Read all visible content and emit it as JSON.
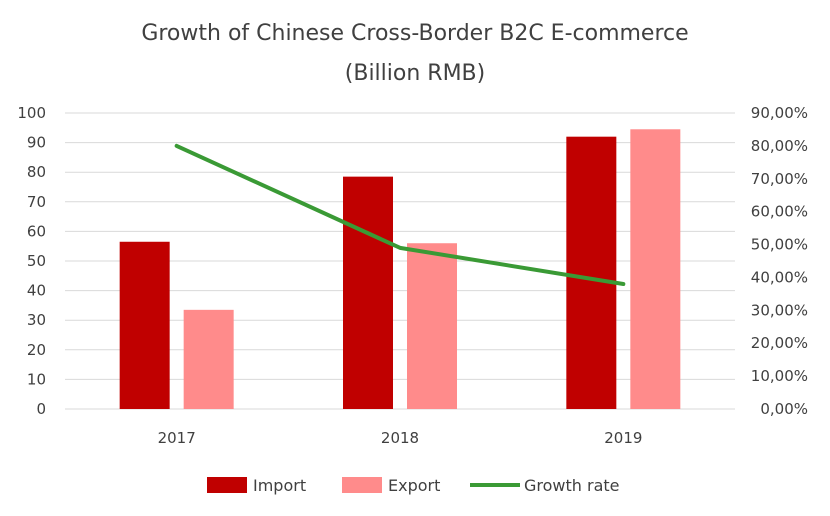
{
  "chart_data": {
    "type": "bar",
    "title": "Growth of Chinese Cross-Border B2C E-commerce",
    "subtitle": "(Billion RMB)",
    "categories": [
      "2017",
      "2018",
      "2019"
    ],
    "series": [
      {
        "name": "Import",
        "type": "bar",
        "axis": "left",
        "values": [
          56.5,
          78.5,
          92
        ],
        "color": "#c00000"
      },
      {
        "name": "Export",
        "type": "bar",
        "axis": "left",
        "values": [
          33.5,
          56,
          94.5
        ],
        "color": "#ff8b8b"
      },
      {
        "name": "Growth rate",
        "type": "line",
        "axis": "right",
        "values": [
          0.8,
          0.49,
          0.38
        ],
        "color": "#3a9a35"
      }
    ],
    "y_left": {
      "min": 0,
      "max": 100,
      "ticks": [
        "0",
        "10",
        "20",
        "30",
        "40",
        "50",
        "60",
        "70",
        "80",
        "90",
        "100"
      ]
    },
    "y_right": {
      "min": 0,
      "max": 0.9,
      "ticks": [
        "0,00%",
        "10,00%",
        "20,00%",
        "30,00%",
        "40,00%",
        "50,00%",
        "60,00%",
        "70,00%",
        "80,00%",
        "90,00%"
      ]
    },
    "grid": true,
    "legend_position": "bottom"
  }
}
